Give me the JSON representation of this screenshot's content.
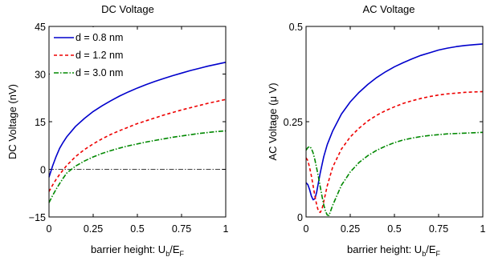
{
  "chart_data": [
    {
      "type": "line",
      "title": "DC Voltage",
      "xlabel": "barrier height: U",
      "xlabel_sub1": "b",
      "xlabel_mid": "/E",
      "xlabel_sub2": "F",
      "ylabel": "DC Voltage (nV)",
      "xlim": [
        0,
        1
      ],
      "ylim": [
        -15,
        45
      ],
      "xticks": [
        0,
        0.25,
        0.5,
        0.75,
        1
      ],
      "xtick_labels": [
        "0",
        "0.25",
        "0.5",
        "0.75",
        "1"
      ],
      "yticks": [
        -15,
        0,
        15,
        30,
        45
      ],
      "ytick_labels": [
        "−15",
        "0",
        "15",
        "30",
        "45"
      ],
      "grid": false,
      "legend_position": "top-left",
      "reference_line": {
        "y": 0,
        "color": "#000000",
        "style": "dashdot"
      },
      "series": [
        {
          "name": "d = 0.8 nm",
          "color": "#0000cc",
          "style": "solid",
          "x": [
            0,
            0.02,
            0.04,
            0.06,
            0.08,
            0.1,
            0.15,
            0.2,
            0.25,
            0.3,
            0.35,
            0.4,
            0.45,
            0.5,
            0.55,
            0.6,
            0.65,
            0.7,
            0.75,
            0.8,
            0.85,
            0.9,
            0.95,
            1
          ],
          "y": [
            -2.5,
            1.0,
            4.0,
            6.6,
            8.5,
            10.2,
            13.5,
            16.0,
            18.2,
            20.0,
            21.6,
            23.1,
            24.4,
            25.6,
            26.7,
            27.7,
            28.6,
            29.5,
            30.3,
            31.1,
            31.8,
            32.5,
            33.1,
            33.7
          ]
        },
        {
          "name": "d = 1.2 nm",
          "color": "#ee0000",
          "style": "dashed",
          "x": [
            0,
            0.02,
            0.04,
            0.06,
            0.08,
            0.1,
            0.15,
            0.2,
            0.25,
            0.3,
            0.35,
            0.4,
            0.45,
            0.5,
            0.55,
            0.6,
            0.65,
            0.7,
            0.75,
            0.8,
            0.85,
            0.9,
            0.95,
            1
          ],
          "y": [
            -7.0,
            -5.0,
            -3.2,
            -1.6,
            -0.2,
            1.2,
            4.0,
            6.2,
            8.0,
            9.6,
            11.0,
            12.2,
            13.3,
            14.4,
            15.3,
            16.2,
            17.1,
            17.9,
            18.7,
            19.4,
            20.1,
            20.8,
            21.4,
            22.0
          ]
        },
        {
          "name": "d = 3.0 nm",
          "color": "#008800",
          "style": "dashdot",
          "x": [
            0,
            0.02,
            0.04,
            0.06,
            0.08,
            0.1,
            0.15,
            0.2,
            0.25,
            0.3,
            0.35,
            0.4,
            0.45,
            0.5,
            0.55,
            0.6,
            0.65,
            0.7,
            0.75,
            0.8,
            0.85,
            0.9,
            0.95,
            1
          ],
          "y": [
            -10.5,
            -8.3,
            -6.3,
            -4.5,
            -2.8,
            -1.2,
            1.0,
            2.6,
            3.9,
            5.0,
            5.9,
            6.7,
            7.4,
            8.0,
            8.6,
            9.1,
            9.6,
            10.1,
            10.5,
            10.9,
            11.3,
            11.6,
            11.9,
            12.1
          ]
        }
      ]
    },
    {
      "type": "line",
      "title": "AC Voltage",
      "xlabel": "barrier height: U",
      "xlabel_sub1": "b",
      "xlabel_mid": "/E",
      "xlabel_sub2": "F",
      "ylabel": "AC Voltage (μ V)",
      "xlim": [
        0,
        1
      ],
      "ylim": [
        0,
        0.5
      ],
      "xticks": [
        0,
        0.25,
        0.5,
        0.75,
        1
      ],
      "xtick_labels": [
        "0",
        "0.25",
        "0.5",
        "0.75",
        "1"
      ],
      "yticks": [
        0,
        0.25,
        0.5
      ],
      "ytick_labels": [
        "0",
        "0.25",
        "0.5"
      ],
      "grid": false,
      "series": [
        {
          "name": "d = 0.8 nm",
          "color": "#0000cc",
          "style": "solid",
          "x": [
            0,
            0.01,
            0.02,
            0.03,
            0.04,
            0.05,
            0.06,
            0.07,
            0.08,
            0.1,
            0.12,
            0.15,
            0.2,
            0.25,
            0.3,
            0.35,
            0.4,
            0.45,
            0.5,
            0.55,
            0.6,
            0.65,
            0.7,
            0.75,
            0.8,
            0.85,
            0.9,
            0.95,
            1
          ],
          "y": [
            0.09,
            0.085,
            0.072,
            0.055,
            0.045,
            0.048,
            0.065,
            0.09,
            0.115,
            0.158,
            0.19,
            0.225,
            0.27,
            0.302,
            0.327,
            0.348,
            0.366,
            0.381,
            0.394,
            0.405,
            0.415,
            0.424,
            0.431,
            0.438,
            0.443,
            0.447,
            0.45,
            0.452,
            0.454
          ]
        },
        {
          "name": "d = 1.2 nm",
          "color": "#ee0000",
          "style": "dashed",
          "x": [
            0,
            0.01,
            0.02,
            0.03,
            0.04,
            0.05,
            0.06,
            0.07,
            0.08,
            0.09,
            0.1,
            0.12,
            0.15,
            0.2,
            0.25,
            0.3,
            0.35,
            0.4,
            0.45,
            0.5,
            0.55,
            0.6,
            0.65,
            0.7,
            0.75,
            0.8,
            0.85,
            0.9,
            0.95,
            1
          ],
          "y": [
            0.155,
            0.148,
            0.13,
            0.108,
            0.082,
            0.055,
            0.032,
            0.015,
            0.012,
            0.02,
            0.04,
            0.082,
            0.13,
            0.178,
            0.21,
            0.233,
            0.252,
            0.267,
            0.279,
            0.289,
            0.298,
            0.305,
            0.311,
            0.316,
            0.32,
            0.323,
            0.325,
            0.327,
            0.328,
            0.329
          ]
        },
        {
          "name": "d = 3.0 nm",
          "color": "#008800",
          "style": "dashdot",
          "x": [
            0,
            0.01,
            0.02,
            0.03,
            0.04,
            0.05,
            0.06,
            0.07,
            0.08,
            0.09,
            0.1,
            0.11,
            0.12,
            0.13,
            0.15,
            0.2,
            0.25,
            0.3,
            0.35,
            0.4,
            0.45,
            0.5,
            0.55,
            0.6,
            0.65,
            0.7,
            0.75,
            0.8,
            0.85,
            0.9,
            0.95,
            1
          ],
          "y": [
            0.175,
            0.182,
            0.185,
            0.18,
            0.168,
            0.15,
            0.128,
            0.105,
            0.08,
            0.055,
            0.032,
            0.015,
            0.005,
            0.004,
            0.03,
            0.083,
            0.118,
            0.143,
            0.161,
            0.175,
            0.186,
            0.195,
            0.202,
            0.207,
            0.211,
            0.214,
            0.216,
            0.218,
            0.219,
            0.22,
            0.221,
            0.222
          ]
        }
      ]
    }
  ]
}
